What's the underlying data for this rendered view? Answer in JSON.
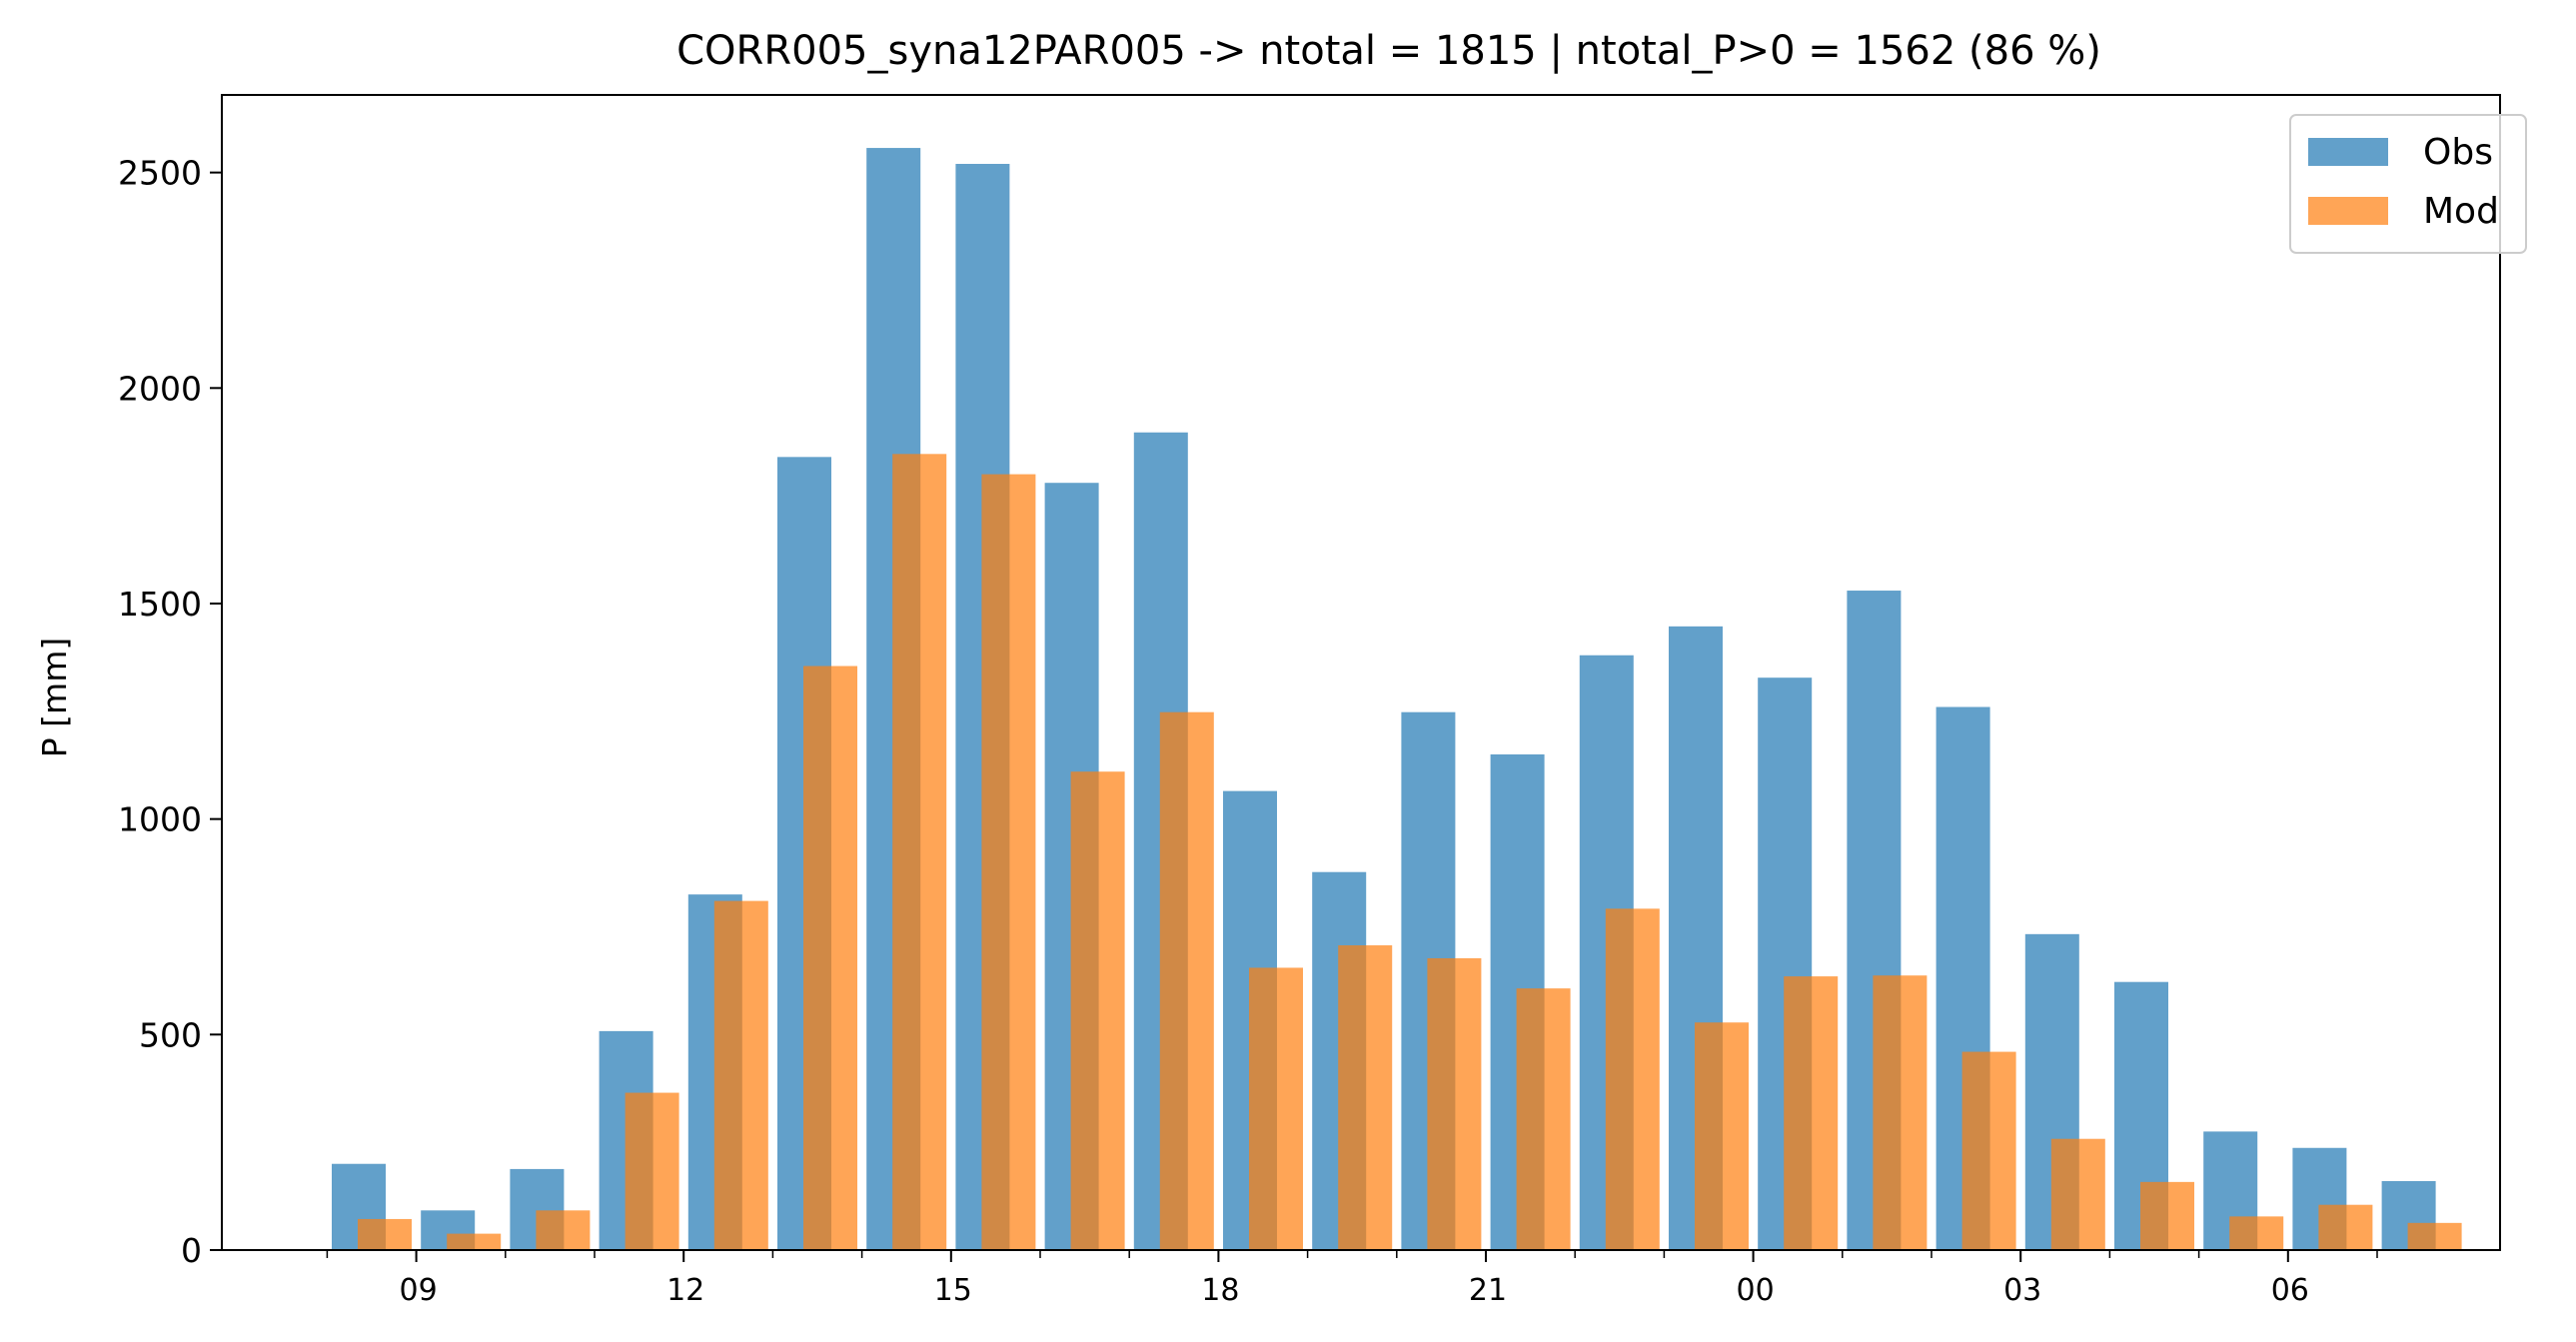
{
  "chart_data": {
    "type": "bar",
    "title": "CORR005_syna12PAR005 -> ntotal = 1815 | ntotal_P>0 = 1562 (86 %)",
    "xlabel": "",
    "ylabel": "P [mm]",
    "ylim": [
      0,
      2680
    ],
    "yticks": [
      0,
      500,
      1000,
      1500,
      2000,
      2500
    ],
    "ytick_labels": [
      "0",
      "500",
      "1000",
      "1500",
      "2000",
      "2500"
    ],
    "hours": [
      "08",
      "09",
      "10",
      "11",
      "12",
      "13",
      "14",
      "15",
      "16",
      "17",
      "18",
      "19",
      "20",
      "21",
      "22",
      "23",
      "00",
      "01",
      "02",
      "03",
      "04",
      "05",
      "06",
      "07"
    ],
    "xtick_labels": [
      {
        "hour_index": 1,
        "label": "09"
      },
      {
        "hour_index": 4,
        "label": "12"
      },
      {
        "hour_index": 7,
        "label": "15"
      },
      {
        "hour_index": 10,
        "label": "18"
      },
      {
        "hour_index": 13,
        "label": "21"
      },
      {
        "hour_index": 16,
        "label": "00"
      },
      {
        "hour_index": 19,
        "label": "03"
      },
      {
        "hour_index": 22,
        "label": "06"
      }
    ],
    "legend_position": "top-right",
    "grid": false,
    "series": [
      {
        "name": "Obs",
        "color": "#1f77b4",
        "opacity": 0.7,
        "values": [
          200,
          92,
          188,
          508,
          825,
          1840,
          2557,
          2520,
          1780,
          1897,
          1065,
          877,
          1248,
          1150,
          1380,
          1447,
          1328,
          1530,
          1260,
          733,
          622,
          275,
          237,
          160
        ]
      },
      {
        "name": "Mod",
        "color": "#ff7f0e",
        "opacity": 0.7,
        "values": [
          72,
          38,
          92,
          365,
          810,
          1355,
          1847,
          1800,
          1110,
          1248,
          655,
          707,
          677,
          607,
          792,
          528,
          635,
          637,
          460,
          258,
          158,
          78,
          105,
          63
        ]
      }
    ]
  }
}
